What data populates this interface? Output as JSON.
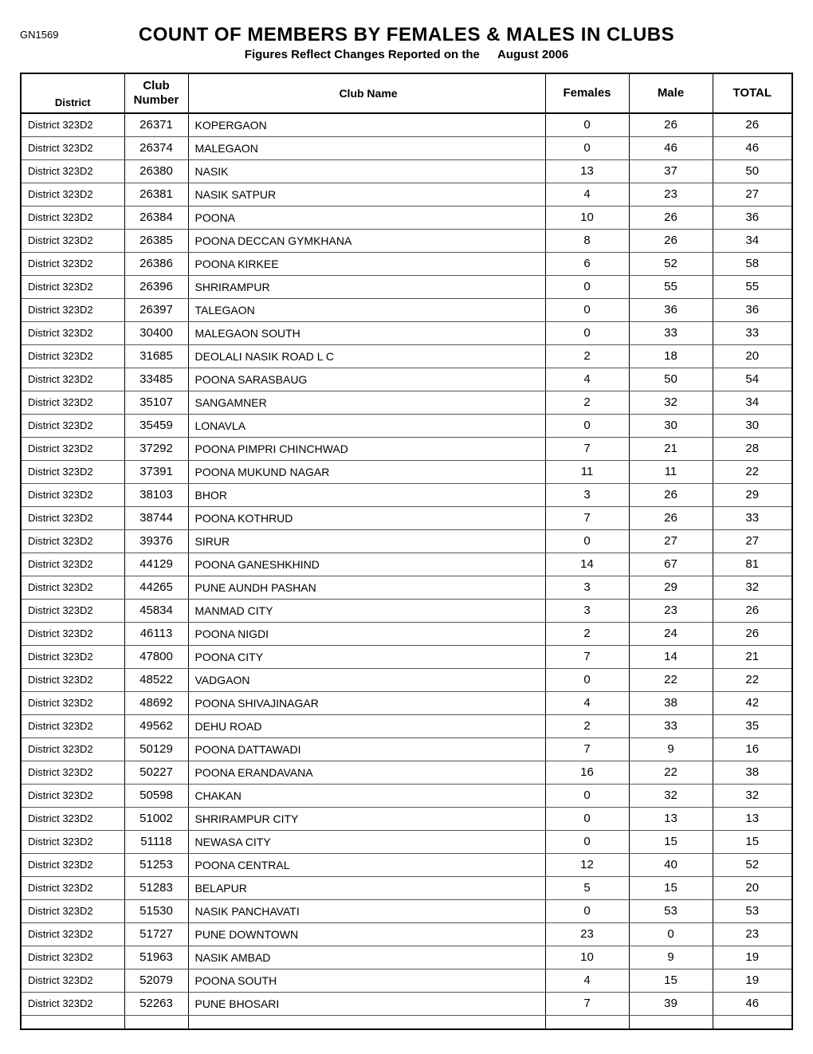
{
  "report_code": "GN1569",
  "title": "COUNT OF MEMBERS BY FEMALES & MALES IN CLUBS",
  "subtitle_prefix": "Figures Reflect Changes Reported on the",
  "subtitle_date": "August 2006",
  "columns": {
    "district": "District",
    "club_number": "Club Number",
    "club_name": "Club Name",
    "females": "Females",
    "male": "Male",
    "total": "TOTAL"
  },
  "rows": [
    {
      "district": "District 323D2",
      "number": "26371",
      "name": "KOPERGAON",
      "females": "0",
      "male": "26",
      "total": "26"
    },
    {
      "district": "District 323D2",
      "number": "26374",
      "name": "MALEGAON",
      "females": "0",
      "male": "46",
      "total": "46"
    },
    {
      "district": "District 323D2",
      "number": "26380",
      "name": "NASIK",
      "females": "13",
      "male": "37",
      "total": "50"
    },
    {
      "district": "District 323D2",
      "number": "26381",
      "name": "NASIK SATPUR",
      "females": "4",
      "male": "23",
      "total": "27"
    },
    {
      "district": "District 323D2",
      "number": "26384",
      "name": "POONA",
      "females": "10",
      "male": "26",
      "total": "36"
    },
    {
      "district": "District 323D2",
      "number": "26385",
      "name": "POONA DECCAN GYMKHANA",
      "females": "8",
      "male": "26",
      "total": "34"
    },
    {
      "district": "District 323D2",
      "number": "26386",
      "name": "POONA KIRKEE",
      "females": "6",
      "male": "52",
      "total": "58"
    },
    {
      "district": "District 323D2",
      "number": "26396",
      "name": "SHRIRAMPUR",
      "females": "0",
      "male": "55",
      "total": "55"
    },
    {
      "district": "District 323D2",
      "number": "26397",
      "name": "TALEGAON",
      "females": "0",
      "male": "36",
      "total": "36"
    },
    {
      "district": "District 323D2",
      "number": "30400",
      "name": "MALEGAON SOUTH",
      "females": "0",
      "male": "33",
      "total": "33"
    },
    {
      "district": "District 323D2",
      "number": "31685",
      "name": "DEOLALI NASIK ROAD L C",
      "females": "2",
      "male": "18",
      "total": "20"
    },
    {
      "district": "District 323D2",
      "number": "33485",
      "name": "POONA SARASBAUG",
      "females": "4",
      "male": "50",
      "total": "54"
    },
    {
      "district": "District 323D2",
      "number": "35107",
      "name": "SANGAMNER",
      "females": "2",
      "male": "32",
      "total": "34"
    },
    {
      "district": "District 323D2",
      "number": "35459",
      "name": "LONAVLA",
      "females": "0",
      "male": "30",
      "total": "30"
    },
    {
      "district": "District 323D2",
      "number": "37292",
      "name": "POONA PIMPRI CHINCHWAD",
      "females": "7",
      "male": "21",
      "total": "28"
    },
    {
      "district": "District 323D2",
      "number": "37391",
      "name": "POONA MUKUND NAGAR",
      "females": "11",
      "male": "11",
      "total": "22"
    },
    {
      "district": "District 323D2",
      "number": "38103",
      "name": "BHOR",
      "females": "3",
      "male": "26",
      "total": "29"
    },
    {
      "district": "District 323D2",
      "number": "38744",
      "name": "POONA KOTHRUD",
      "females": "7",
      "male": "26",
      "total": "33"
    },
    {
      "district": "District 323D2",
      "number": "39376",
      "name": "SIRUR",
      "females": "0",
      "male": "27",
      "total": "27"
    },
    {
      "district": "District 323D2",
      "number": "44129",
      "name": "POONA GANESHKHIND",
      "females": "14",
      "male": "67",
      "total": "81"
    },
    {
      "district": "District 323D2",
      "number": "44265",
      "name": "PUNE AUNDH PASHAN",
      "females": "3",
      "male": "29",
      "total": "32"
    },
    {
      "district": "District 323D2",
      "number": "45834",
      "name": "MANMAD CITY",
      "females": "3",
      "male": "23",
      "total": "26"
    },
    {
      "district": "District 323D2",
      "number": "46113",
      "name": "POONA NIGDI",
      "females": "2",
      "male": "24",
      "total": "26"
    },
    {
      "district": "District 323D2",
      "number": "47800",
      "name": "POONA CITY",
      "females": "7",
      "male": "14",
      "total": "21"
    },
    {
      "district": "District 323D2",
      "number": "48522",
      "name": "VADGAON",
      "females": "0",
      "male": "22",
      "total": "22"
    },
    {
      "district": "District 323D2",
      "number": "48692",
      "name": "POONA SHIVAJINAGAR",
      "females": "4",
      "male": "38",
      "total": "42"
    },
    {
      "district": "District 323D2",
      "number": "49562",
      "name": "DEHU ROAD",
      "females": "2",
      "male": "33",
      "total": "35"
    },
    {
      "district": "District 323D2",
      "number": "50129",
      "name": "POONA DATTAWADI",
      "females": "7",
      "male": "9",
      "total": "16"
    },
    {
      "district": "District 323D2",
      "number": "50227",
      "name": "POONA ERANDAVANA",
      "females": "16",
      "male": "22",
      "total": "38"
    },
    {
      "district": "District 323D2",
      "number": "50598",
      "name": "CHAKAN",
      "females": "0",
      "male": "32",
      "total": "32"
    },
    {
      "district": "District 323D2",
      "number": "51002",
      "name": "SHRIRAMPUR CITY",
      "females": "0",
      "male": "13",
      "total": "13"
    },
    {
      "district": "District 323D2",
      "number": "51118",
      "name": "NEWASA CITY",
      "females": "0",
      "male": "15",
      "total": "15"
    },
    {
      "district": "District 323D2",
      "number": "51253",
      "name": "POONA CENTRAL",
      "females": "12",
      "male": "40",
      "total": "52"
    },
    {
      "district": "District 323D2",
      "number": "51283",
      "name": "BELAPUR",
      "females": "5",
      "male": "15",
      "total": "20"
    },
    {
      "district": "District 323D2",
      "number": "51530",
      "name": "NASIK PANCHAVATI",
      "females": "0",
      "male": "53",
      "total": "53"
    },
    {
      "district": "District 323D2",
      "number": "51727",
      "name": "PUNE DOWNTOWN",
      "females": "23",
      "male": "0",
      "total": "23"
    },
    {
      "district": "District 323D2",
      "number": "51963",
      "name": "NASIK AMBAD",
      "females": "10",
      "male": "9",
      "total": "19"
    },
    {
      "district": "District 323D2",
      "number": "52079",
      "name": "POONA SOUTH",
      "females": "4",
      "male": "15",
      "total": "19"
    },
    {
      "district": "District 323D2",
      "number": "52263",
      "name": "PUNE BHOSARI",
      "females": "7",
      "male": "39",
      "total": "46"
    }
  ]
}
